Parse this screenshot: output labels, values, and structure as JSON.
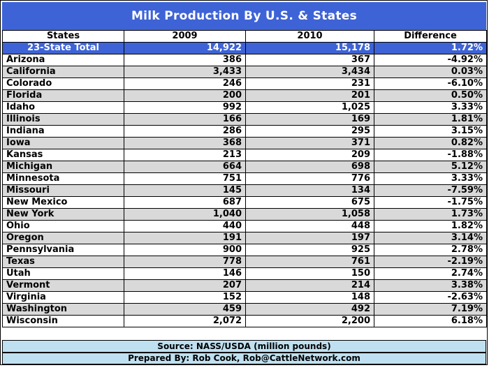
{
  "title": "Milk Production By U.S. & States",
  "headers": [
    "States",
    "2009",
    "2010",
    "Difference"
  ],
  "total": {
    "state": "23-State Total",
    "y2009": "14,922",
    "y2010": "15,178",
    "diff": "1.72%"
  },
  "rows": [
    {
      "state": "Arizona",
      "y2009": "386",
      "y2010": "367",
      "diff": "-4.92%"
    },
    {
      "state": "California",
      "y2009": "3,433",
      "y2010": "3,434",
      "diff": "0.03%"
    },
    {
      "state": "Colorado",
      "y2009": "246",
      "y2010": "231",
      "diff": "-6.10%"
    },
    {
      "state": "Florida",
      "y2009": "200",
      "y2010": "201",
      "diff": "0.50%"
    },
    {
      "state": "Idaho",
      "y2009": "992",
      "y2010": "1,025",
      "diff": "3.33%"
    },
    {
      "state": "Illinois",
      "y2009": "166",
      "y2010": "169",
      "diff": "1.81%"
    },
    {
      "state": "Indiana",
      "y2009": "286",
      "y2010": "295",
      "diff": "3.15%"
    },
    {
      "state": "Iowa",
      "y2009": "368",
      "y2010": "371",
      "diff": "0.82%"
    },
    {
      "state": "Kansas",
      "y2009": "213",
      "y2010": "209",
      "diff": "-1.88%"
    },
    {
      "state": "Michigan",
      "y2009": "664",
      "y2010": "698",
      "diff": "5.12%"
    },
    {
      "state": "Minnesota",
      "y2009": "751",
      "y2010": "776",
      "diff": "3.33%"
    },
    {
      "state": "Missouri",
      "y2009": "145",
      "y2010": "134",
      "diff": "-7.59%"
    },
    {
      "state": "New Mexico",
      "y2009": "687",
      "y2010": "675",
      "diff": "-1.75%"
    },
    {
      "state": "New York",
      "y2009": "1,040",
      "y2010": "1,058",
      "diff": "1.73%"
    },
    {
      "state": "Ohio",
      "y2009": "440",
      "y2010": "448",
      "diff": "1.82%"
    },
    {
      "state": "Oregon",
      "y2009": "191",
      "y2010": "197",
      "diff": "3.14%"
    },
    {
      "state": "Pennsylvania",
      "y2009": "900",
      "y2010": "925",
      "diff": "2.78%"
    },
    {
      "state": "Texas",
      "y2009": "778",
      "y2010": "761",
      "diff": "-2.19%"
    },
    {
      "state": "Utah",
      "y2009": "146",
      "y2010": "150",
      "diff": "2.74%"
    },
    {
      "state": "Vermont",
      "y2009": "207",
      "y2010": "214",
      "diff": "3.38%"
    },
    {
      "state": "Virginia",
      "y2009": "152",
      "y2010": "148",
      "diff": "-2.63%"
    },
    {
      "state": "Washington",
      "y2009": "459",
      "y2010": "492",
      "diff": "7.19%"
    },
    {
      "state": "Wisconsin",
      "y2009": "2,072",
      "y2010": "2,200",
      "diff": "6.18%"
    }
  ],
  "source": "Source:  NASS/USDA (million pounds)",
  "prepared": "Prepared By:  Rob Cook, Rob@CattleNetwork.com",
  "colors": {
    "title_bg": "#3e63d6",
    "gray_row": "#d9d9d9",
    "footer_bg": "#bfe0f0"
  }
}
